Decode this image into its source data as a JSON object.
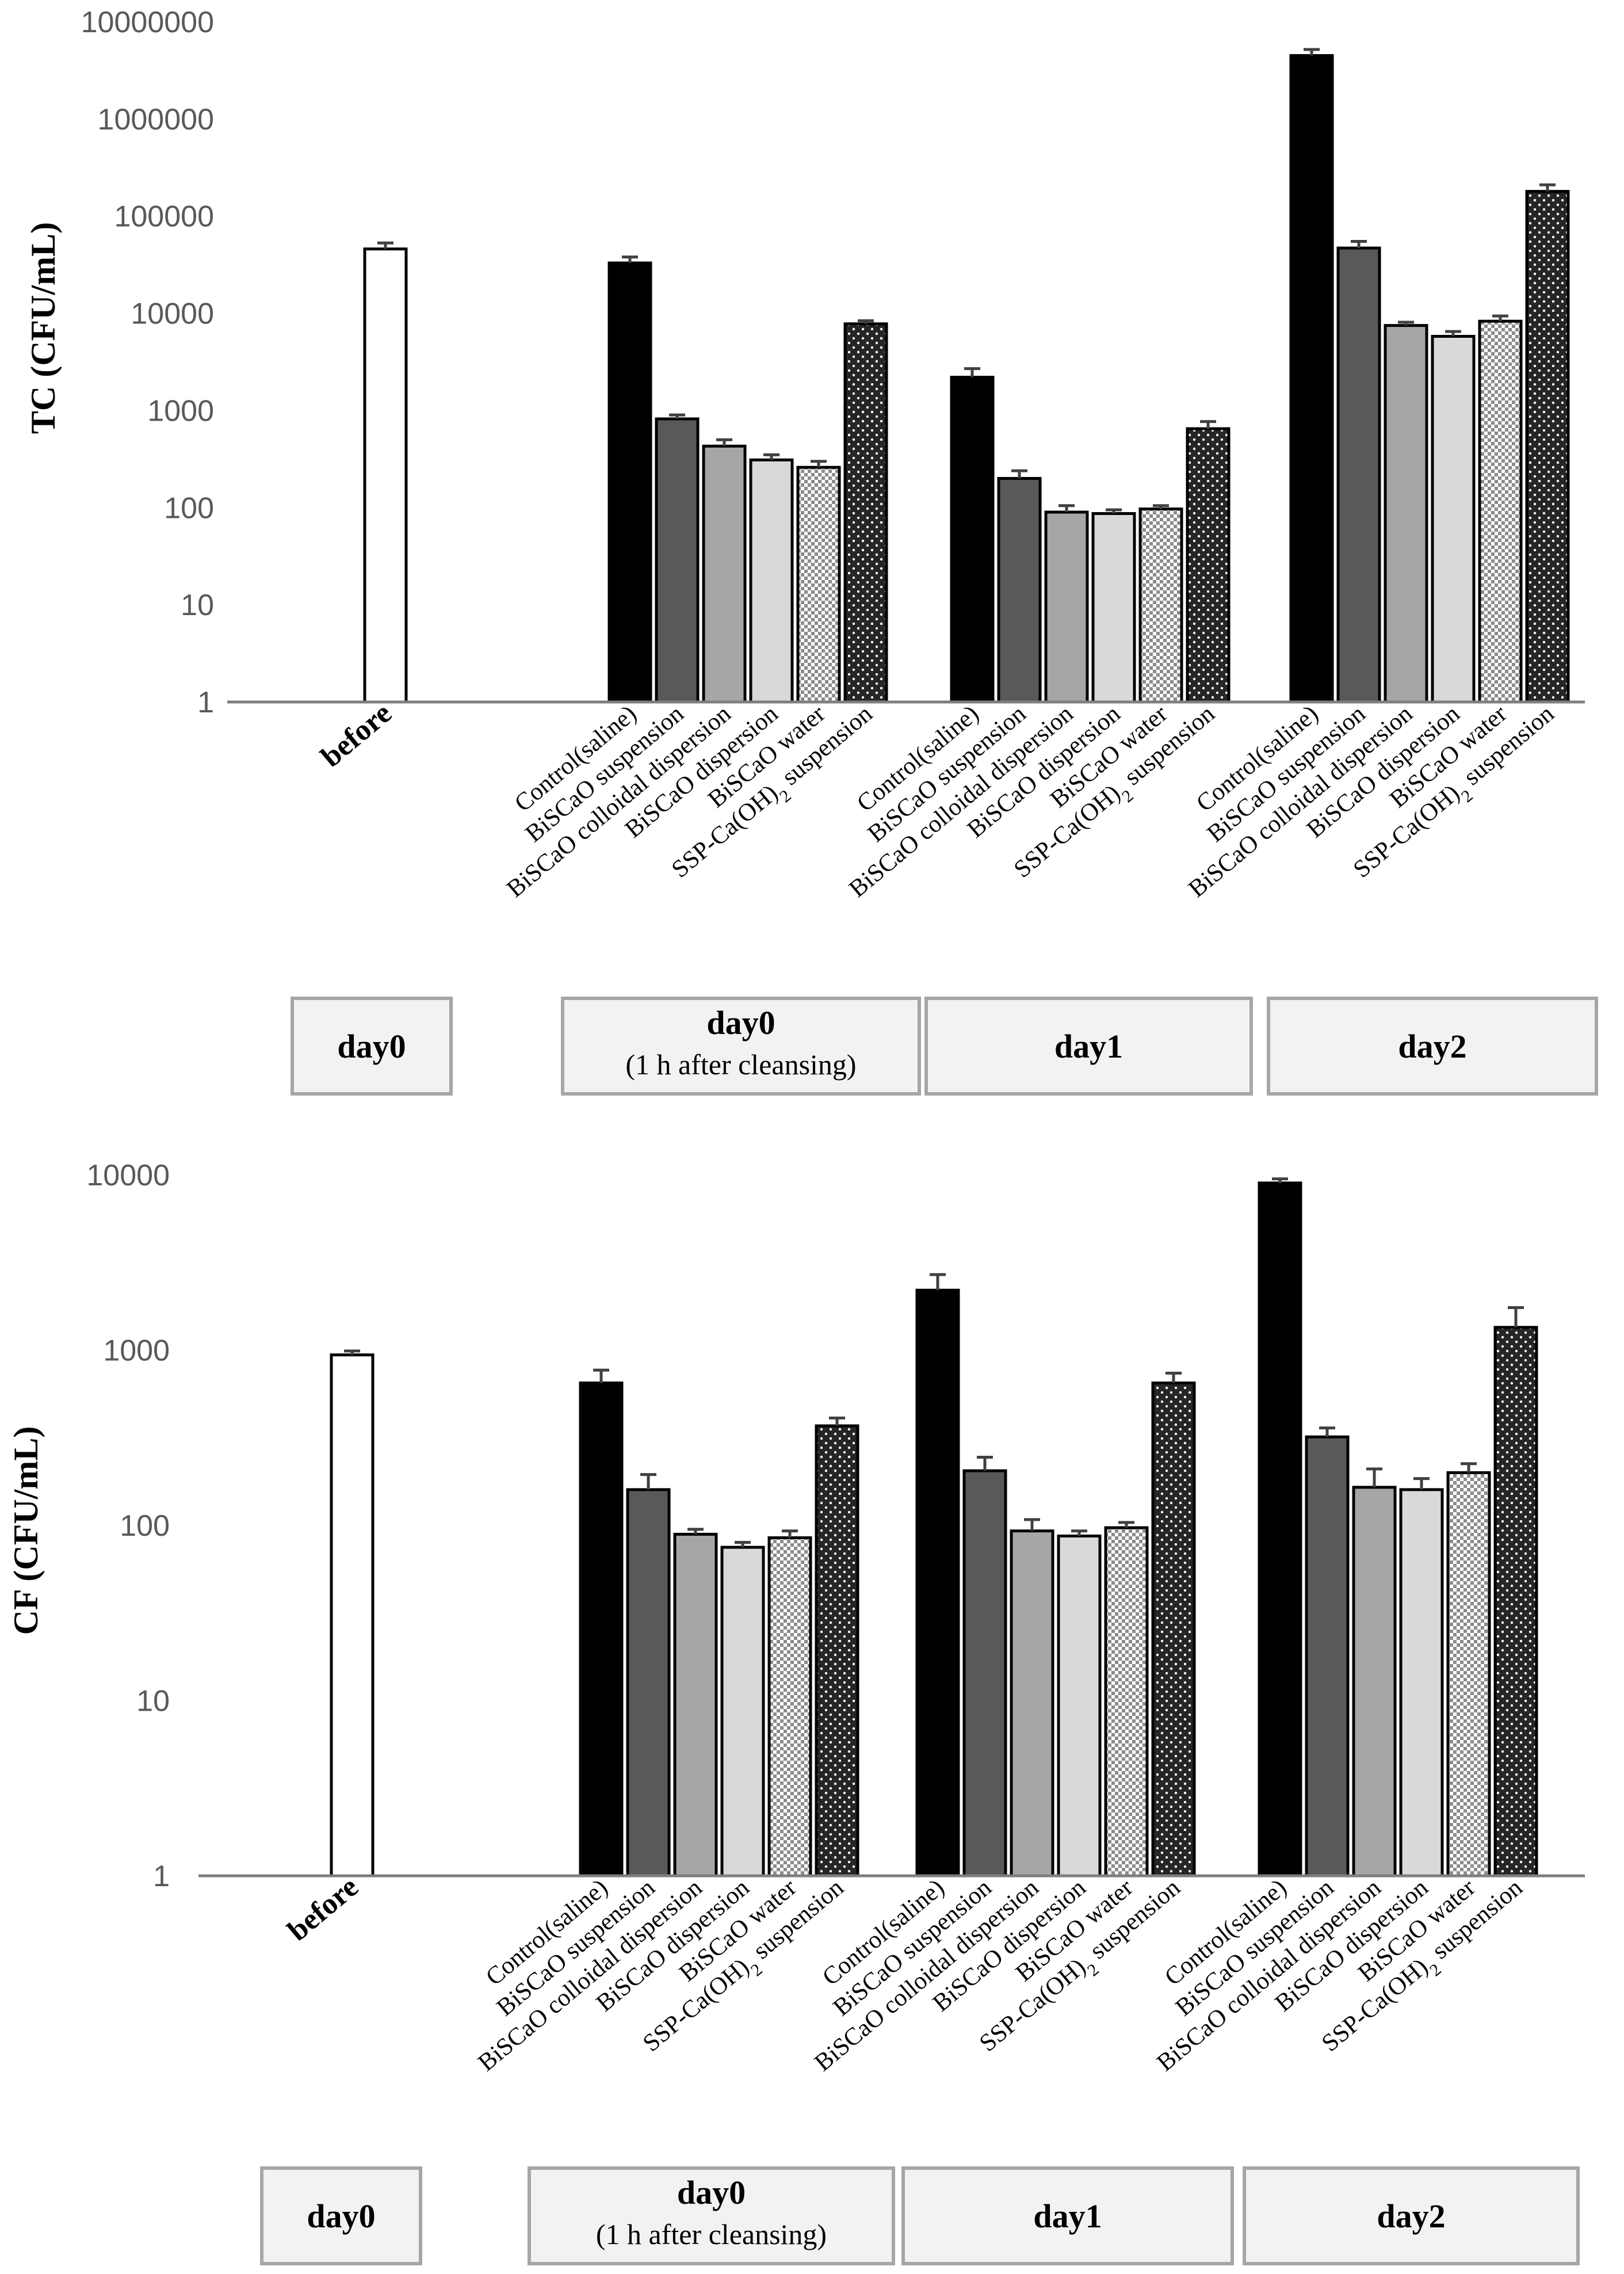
{
  "colors": {
    "before": "#ffffff",
    "control": "#000000",
    "suspension": "#595959",
    "colloidal": "#a6a6a6",
    "dispersion": "#d9d9d9",
    "water": "checker-pattern",
    "ssp": "dotted-dark-pattern",
    "axis": "#7f7f7f",
    "group_box_fill": "#f2f2f2",
    "group_box_border": "#a6a6a6"
  },
  "chart_data": [
    {
      "type": "bar",
      "y_scale": "log",
      "ylabel": "TC (CFU/mL)",
      "ylim": [
        1,
        10000000
      ],
      "yticks": [
        "1",
        "10",
        "100",
        "1000",
        "10000",
        "100000",
        "1000000",
        "10000000"
      ],
      "grid": false,
      "legend": "none",
      "categories": [
        "before",
        "Control(saline)",
        "BiSCaO suspension",
        "BiSCaO colloidal dispersion",
        "BiSCaO dispersion",
        "BiSCaO water",
        "SSP-Ca(OH)2 suspension",
        "Control(saline)",
        "BiSCaO suspension",
        "BiSCaO colloidal dispersion",
        "BiSCaO dispersion",
        "BiSCaO water",
        "SSP-Ca(OH)2 suspension",
        "Control(saline)",
        "BiSCaO suspension",
        "BiSCaO colloidal dispersion",
        "BiSCaO dispersion",
        "BiSCaO water",
        "SSP-Ca(OH)2 suspension"
      ],
      "values": [
        46000,
        33000,
        820,
        430,
        310,
        260,
        7800,
        2200,
        200,
        90,
        87,
        97,
        650,
        4500000,
        47000,
        7500,
        5800,
        8300,
        180000
      ],
      "errors_upper": [
        53000,
        38000,
        900,
        500,
        350,
        300,
        8400,
        2700,
        240,
        105,
        95,
        105,
        770,
        5200000,
        55000,
        8100,
        6500,
        9400,
        210000
      ],
      "groups": [
        {
          "label": "day0",
          "sublabel": "",
          "bars": 1
        },
        {
          "label": "day0",
          "sublabel": "(1 h after cleansing)",
          "bars": 6
        },
        {
          "label": "day1",
          "sublabel": "",
          "bars": 6
        },
        {
          "label": "day2",
          "sublabel": "",
          "bars": 6
        }
      ]
    },
    {
      "type": "bar",
      "y_scale": "log",
      "ylabel": "CF (CFU/mL)",
      "ylim": [
        1,
        10000
      ],
      "yticks": [
        "1",
        "10",
        "100",
        "1000",
        "10000"
      ],
      "grid": false,
      "legend": "none",
      "categories": [
        "before",
        "Control(saline)",
        "BiSCaO suspension",
        "BiSCaO colloidal dispersion",
        "BiSCaO dispersion",
        "BiSCaO water",
        "SSP-Ca(OH)2 suspension",
        "Control(saline)",
        "BiSCaO suspension",
        "BiSCaO colloidal dispersion",
        "BiSCaO dispersion",
        "BiSCaO water",
        "SSP-Ca(OH)2 suspension",
        "Control(saline)",
        "BiSCaO suspension",
        "BiSCaO colloidal dispersion",
        "BiSCaO dispersion",
        "BiSCaO water",
        "SSP-Ca(OH)2 suspension"
      ],
      "values": [
        940,
        650,
        160,
        89,
        75,
        85,
        370,
        2200,
        205,
        93,
        87,
        97,
        650,
        9000,
        320,
        165,
        160,
        200,
        1350
      ],
      "errors_upper": [
        990,
        770,
        195,
        95,
        80,
        93,
        410,
        2700,
        245,
        108,
        93,
        104,
        740,
        9500,
        360,
        210,
        185,
        225,
        1750
      ],
      "groups": [
        {
          "label": "day0",
          "sublabel": "",
          "bars": 1
        },
        {
          "label": "day0",
          "sublabel": "(1 h after cleansing)",
          "bars": 6
        },
        {
          "label": "day1",
          "sublabel": "",
          "bars": 6
        },
        {
          "label": "day2",
          "sublabel": "",
          "bars": 6
        }
      ]
    }
  ]
}
